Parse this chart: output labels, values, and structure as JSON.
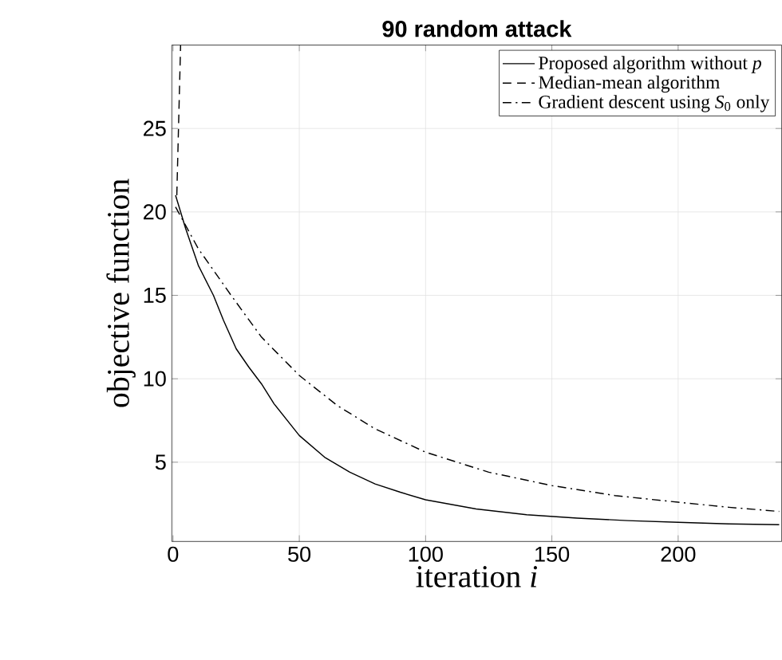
{
  "chart_data": {
    "type": "line",
    "title": "90 random attack",
    "xlabel": "iteration *i*",
    "ylabel": "objective function",
    "xlim": [
      -0.5,
      241
    ],
    "ylim": [
      0.25,
      30
    ],
    "xticks": [
      0,
      50,
      100,
      150,
      200
    ],
    "yticks": [
      5,
      10,
      15,
      20,
      25
    ],
    "grid": true,
    "legend": "top right",
    "marker": "none",
    "series": [
      {
        "name": "Proposed algorithm without *p*",
        "color": "#000000",
        "line_style": "solid",
        "x": [
          1,
          5,
          10,
          16,
          20,
          25,
          30,
          35,
          40,
          50,
          60,
          70,
          80,
          90,
          100,
          120,
          140,
          160,
          180,
          200,
          220,
          240
        ],
        "values": [
          21,
          19,
          16.8,
          15,
          13.5,
          11.8,
          10.7,
          9.7,
          8.5,
          6.6,
          5.3,
          4.4,
          3.7,
          3.2,
          2.75,
          2.2,
          1.85,
          1.65,
          1.5,
          1.4,
          1.3,
          1.25
        ]
      },
      {
        "name": "Median-mean algorithm",
        "color": "#000000",
        "line_style": "dashed",
        "x": [
          1.5,
          3
        ],
        "values": [
          21,
          30
        ]
      },
      {
        "name": "Gradient descent using *S*$_{0}$ only",
        "color": "#000000",
        "line_style": "dashdot",
        "x": [
          1,
          10,
          23,
          35,
          50,
          65,
          80,
          100,
          125,
          150,
          175,
          200,
          220,
          240
        ],
        "values": [
          20.3,
          17.8,
          15,
          12.5,
          10.2,
          8.4,
          7,
          5.6,
          4.4,
          3.6,
          3,
          2.6,
          2.3,
          2.05
        ]
      }
    ]
  }
}
